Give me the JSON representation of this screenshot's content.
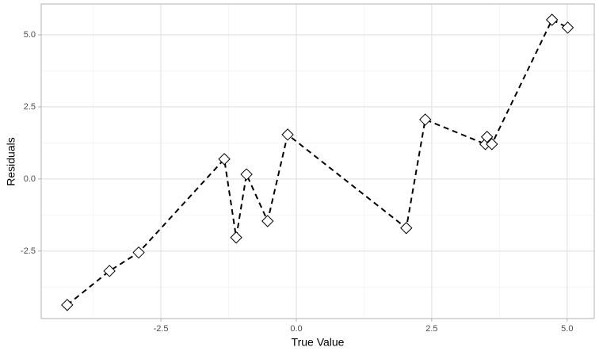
{
  "chart_data": {
    "type": "scatter",
    "x_label": "True Value",
    "y_label": "Residuals",
    "x": [
      -4.23,
      -3.45,
      -2.91,
      -1.33,
      -1.11,
      -0.92,
      -0.53,
      -0.16,
      2.03,
      2.38,
      3.49,
      3.52,
      3.61,
      4.72,
      5.01
    ],
    "values": [
      -4.37,
      -3.19,
      -2.55,
      0.69,
      -2.03,
      0.16,
      -1.46,
      1.54,
      -1.7,
      2.06,
      1.21,
      1.46,
      1.21,
      5.52,
      5.25
    ],
    "color": "#000000",
    "connect_line": "dashed",
    "xlim": [
      -4.71,
      5.5
    ],
    "ylim": [
      -4.84,
      6.07
    ],
    "xticks": [
      -2.5,
      {
        "value": 0,
        "label": "0.0"
      },
      2.5,
      {
        "value": 5,
        "label": "5.0"
      }
    ],
    "yticks": [
      -2.5,
      {
        "value": 0,
        "label": "0.0"
      },
      2.5,
      {
        "value": 5,
        "label": "5.0"
      }
    ],
    "x_minor_ticks": [
      -3.75,
      -1.25,
      1.25,
      3.75
    ],
    "y_minor_ticks": [
      -3.75,
      -1.25,
      1.25,
      3.75
    ],
    "grid": true
  }
}
